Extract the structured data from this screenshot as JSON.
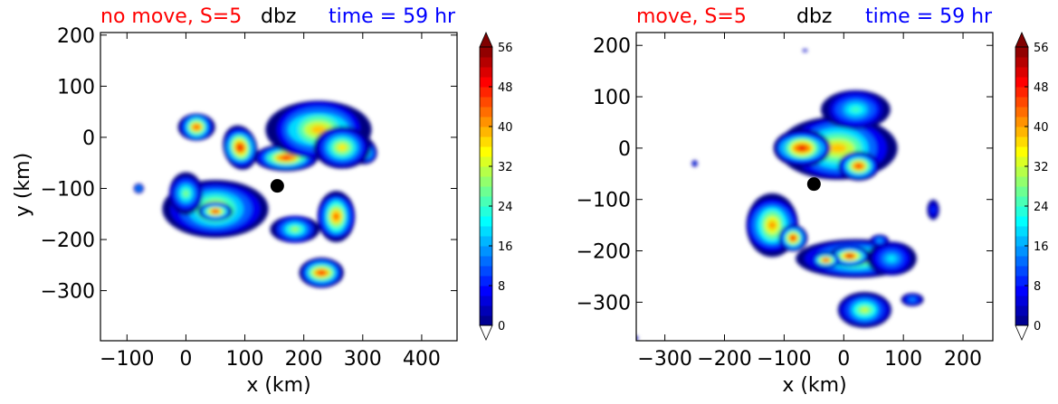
{
  "chart_data": [
    {
      "type": "heatmap",
      "title_left": "no move, S=5",
      "title_center": "dbz",
      "title_right": "time = 59 hr",
      "title_colors": {
        "left": "#ff0000",
        "center": "#000000",
        "right": "#0000ff"
      },
      "xlabel": "x (km)",
      "ylabel": "y (km)",
      "xlim": [
        -145,
        460
      ],
      "ylim": [
        -398,
        205
      ],
      "xticks": [
        -100,
        0,
        100,
        200,
        300,
        400
      ],
      "xtick_labels": [
        "−100",
        "0",
        "100",
        "200",
        "300",
        "400"
      ],
      "yticks": [
        200,
        100,
        0,
        -100,
        -200,
        -300
      ],
      "ytick_labels": [
        "200",
        "100",
        "0",
        "−100",
        "−200",
        "−300"
      ],
      "center_marker": {
        "x": 155,
        "y": -95
      },
      "cells": [
        {
          "x": 18,
          "y": 20,
          "rx": 30,
          "ry": 28,
          "peak": 46,
          "rot": 0
        },
        {
          "x": 92,
          "y": -20,
          "rx": 30,
          "ry": 42,
          "peak": 50,
          "rot": -15
        },
        {
          "x": 170,
          "y": -40,
          "rx": 55,
          "ry": 26,
          "peak": 48,
          "rot": 0
        },
        {
          "x": 225,
          "y": 15,
          "rx": 85,
          "ry": 60,
          "peak": 38,
          "rot": 0
        },
        {
          "x": 290,
          "y": -20,
          "rx": 38,
          "ry": 28,
          "peak": 50,
          "rot": 30
        },
        {
          "x": 265,
          "y": -20,
          "rx": 50,
          "ry": 40,
          "peak": 36,
          "rot": 0
        },
        {
          "x": 50,
          "y": -140,
          "rx": 85,
          "ry": 60,
          "peak": 36,
          "rot": 0
        },
        {
          "x": 50,
          "y": -145,
          "rx": 30,
          "ry": 18,
          "peak": 50,
          "rot": 0
        },
        {
          "x": 0,
          "y": -110,
          "rx": 30,
          "ry": 40,
          "peak": 28,
          "rot": 0
        },
        {
          "x": 185,
          "y": -180,
          "rx": 40,
          "ry": 28,
          "peak": 30,
          "rot": 0
        },
        {
          "x": 255,
          "y": -155,
          "rx": 32,
          "ry": 50,
          "peak": 44,
          "rot": 0
        },
        {
          "x": 230,
          "y": -265,
          "rx": 40,
          "ry": 28,
          "peak": 48,
          "rot": 0
        },
        {
          "x": -80,
          "y": -100,
          "rx": 8,
          "ry": 10,
          "peak": 18,
          "rot": 0
        }
      ],
      "colorbar": {
        "levels": [
          0,
          56
        ],
        "step": 2,
        "tick_labels": [
          "0",
          "8",
          "16",
          "24",
          "32",
          "40",
          "48",
          "56"
        ],
        "extend": "both"
      }
    },
    {
      "type": "heatmap",
      "title_left": "move, S=5",
      "title_center": "dbz",
      "title_right": "time = 59 hr",
      "title_colors": {
        "left": "#ff0000",
        "center": "#000000",
        "right": "#0000ff"
      },
      "xlabel": "x (km)",
      "ylabel": "",
      "xlim": [
        -348,
        250
      ],
      "ylim": [
        -375,
        225
      ],
      "xticks": [
        -300,
        -200,
        -100,
        0,
        100,
        200
      ],
      "xtick_labels": [
        "−300",
        "−200",
        "−100",
        "0",
        "100",
        "200"
      ],
      "yticks": [
        200,
        100,
        0,
        -100,
        -200,
        -300
      ],
      "ytick_labels": [
        "200",
        "100",
        "0",
        "−100",
        "−200",
        "−300"
      ],
      "center_marker": {
        "x": -50,
        "y": -70
      },
      "cells": [
        {
          "x": -10,
          "y": 0,
          "rx": 95,
          "ry": 65,
          "peak": 38,
          "rot": 0
        },
        {
          "x": -70,
          "y": 0,
          "rx": 50,
          "ry": 35,
          "peak": 50,
          "rot": 0
        },
        {
          "x": 25,
          "y": -35,
          "rx": 35,
          "ry": 28,
          "peak": 48,
          "rot": 0
        },
        {
          "x": 20,
          "y": 75,
          "rx": 55,
          "ry": 40,
          "peak": 24,
          "rot": 0
        },
        {
          "x": -120,
          "y": -150,
          "rx": 45,
          "ry": 60,
          "peak": 40,
          "rot": 0
        },
        {
          "x": -85,
          "y": -175,
          "rx": 25,
          "ry": 25,
          "peak": 50,
          "rot": 0
        },
        {
          "x": 20,
          "y": -215,
          "rx": 95,
          "ry": 40,
          "peak": 36,
          "rot": 0
        },
        {
          "x": 10,
          "y": -210,
          "rx": 35,
          "ry": 20,
          "peak": 52,
          "rot": 0
        },
        {
          "x": -30,
          "y": -218,
          "rx": 25,
          "ry": 15,
          "peak": 50,
          "rot": 0
        },
        {
          "x": 80,
          "y": -215,
          "rx": 40,
          "ry": 35,
          "peak": 20,
          "rot": 0
        },
        {
          "x": 35,
          "y": -315,
          "rx": 45,
          "ry": 35,
          "peak": 32,
          "rot": 0
        },
        {
          "x": 115,
          "y": -295,
          "rx": 20,
          "ry": 12,
          "peak": 16,
          "rot": 0
        },
        {
          "x": 60,
          "y": -180,
          "rx": 15,
          "ry": 12,
          "peak": 18,
          "rot": 0
        },
        {
          "x": 150,
          "y": -120,
          "rx": 10,
          "ry": 20,
          "peak": 10,
          "rot": 0
        },
        {
          "x": -250,
          "y": -30,
          "rx": 5,
          "ry": 6,
          "peak": 10,
          "rot": 0
        },
        {
          "x": -350,
          "y": -370,
          "rx": 5,
          "ry": 5,
          "peak": 8,
          "rot": 0
        },
        {
          "x": -65,
          "y": 190,
          "rx": 4,
          "ry": 3,
          "peak": 8,
          "rot": 0
        }
      ],
      "colorbar": {
        "levels": [
          0,
          56
        ],
        "step": 2,
        "tick_labels": [
          "0",
          "8",
          "16",
          "24",
          "32",
          "40",
          "48",
          "56"
        ],
        "extend": "both"
      }
    }
  ]
}
